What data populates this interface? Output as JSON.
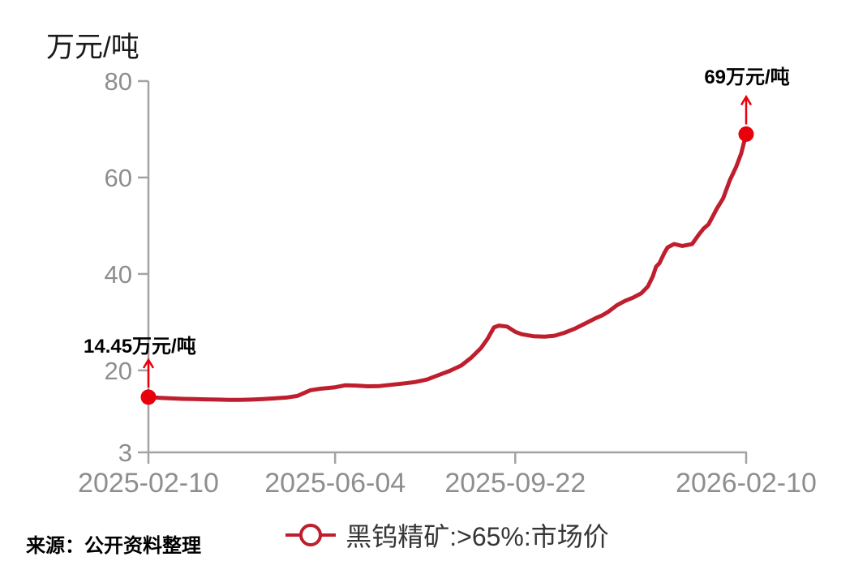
{
  "unit_label": "万元/吨",
  "source_note": "来源：公开资料整理",
  "legend": {
    "label": "黑钨精矿:>65%:市场价"
  },
  "annotations": {
    "start_value_label": "14.45万元/吨",
    "end_value_label": "69万元/吨"
  },
  "colors": {
    "line": "#be1e2d",
    "marker": "#e8000b",
    "axis": "#a3a3a3",
    "tick_label": "#8e8e8e",
    "annotation_text": "#000000",
    "legend_text": "#363636"
  },
  "chart_data": {
    "type": "line",
    "title": "",
    "ylabel": "万元/吨",
    "ylim": [
      3,
      80
    ],
    "yticks": [
      3,
      20,
      40,
      60,
      80
    ],
    "xticks": [
      "2025-02-10",
      "2025-06-04",
      "2025-09-22",
      "2026-02-10"
    ],
    "grid": false,
    "legend_position": "bottom",
    "series": [
      {
        "name": "黑钨精矿:>65%:市场价",
        "color": "#be1e2d",
        "points": [
          [
            "2025-02-10",
            14.45
          ],
          [
            "2025-02-17",
            14.3
          ],
          [
            "2025-02-24",
            14.2
          ],
          [
            "2025-03-03",
            14.1
          ],
          [
            "2025-03-10",
            14.05
          ],
          [
            "2025-03-17",
            14.0
          ],
          [
            "2025-03-24",
            13.95
          ],
          [
            "2025-03-31",
            13.9
          ],
          [
            "2025-04-07",
            13.9
          ],
          [
            "2025-04-14",
            13.95
          ],
          [
            "2025-04-21",
            14.05
          ],
          [
            "2025-04-28",
            14.2
          ],
          [
            "2025-05-06",
            14.4
          ],
          [
            "2025-05-12",
            14.7
          ],
          [
            "2025-05-16",
            15.3
          ],
          [
            "2025-05-20",
            15.9
          ],
          [
            "2025-05-26",
            16.2
          ],
          [
            "2025-06-04",
            16.5
          ],
          [
            "2025-06-10",
            16.9
          ],
          [
            "2025-06-17",
            16.85
          ],
          [
            "2025-06-24",
            16.7
          ],
          [
            "2025-07-01",
            16.75
          ],
          [
            "2025-07-08",
            17.0
          ],
          [
            "2025-07-15",
            17.25
          ],
          [
            "2025-07-23",
            17.6
          ],
          [
            "2025-07-30",
            18.1
          ],
          [
            "2025-08-06",
            19.0
          ],
          [
            "2025-08-13",
            19.9
          ],
          [
            "2025-08-20",
            21.0
          ],
          [
            "2025-08-26",
            22.6
          ],
          [
            "2025-09-01",
            24.6
          ],
          [
            "2025-09-05",
            26.5
          ],
          [
            "2025-09-09",
            28.9
          ],
          [
            "2025-09-12",
            29.3
          ],
          [
            "2025-09-17",
            29.1
          ],
          [
            "2025-09-22",
            28.0
          ],
          [
            "2025-09-26",
            27.5
          ],
          [
            "2025-10-03",
            27.1
          ],
          [
            "2025-10-10",
            27.0
          ],
          [
            "2025-10-16",
            27.2
          ],
          [
            "2025-10-22",
            27.8
          ],
          [
            "2025-10-28",
            28.6
          ],
          [
            "2025-11-03",
            29.6
          ],
          [
            "2025-11-10",
            30.8
          ],
          [
            "2025-11-14",
            31.4
          ],
          [
            "2025-11-18",
            32.2
          ],
          [
            "2025-11-23",
            33.5
          ],
          [
            "2025-11-28",
            34.4
          ],
          [
            "2025-12-03",
            35.1
          ],
          [
            "2025-12-08",
            36.0
          ],
          [
            "2025-12-12",
            37.4
          ],
          [
            "2025-12-15",
            39.5
          ],
          [
            "2025-12-17",
            41.5
          ],
          [
            "2025-12-19",
            42.2
          ],
          [
            "2025-12-22",
            44.3
          ],
          [
            "2025-12-24",
            45.5
          ],
          [
            "2025-12-28",
            46.2
          ],
          [
            "2026-01-02",
            45.8
          ],
          [
            "2026-01-08",
            46.2
          ],
          [
            "2026-01-12",
            48.1
          ],
          [
            "2026-01-15",
            49.4
          ],
          [
            "2026-01-18",
            50.3
          ],
          [
            "2026-01-21",
            52.2
          ],
          [
            "2026-01-23",
            53.5
          ],
          [
            "2026-01-27",
            55.7
          ],
          [
            "2026-01-31",
            59.4
          ],
          [
            "2026-02-04",
            62.3
          ],
          [
            "2026-02-07",
            65.0
          ],
          [
            "2026-02-10",
            69.0
          ]
        ]
      }
    ],
    "point_annotations": [
      {
        "point": [
          "2025-02-10",
          14.45
        ],
        "label": "14.45万元/吨"
      },
      {
        "point": [
          "2026-02-10",
          69.0
        ],
        "label": "69万元/吨"
      }
    ]
  }
}
